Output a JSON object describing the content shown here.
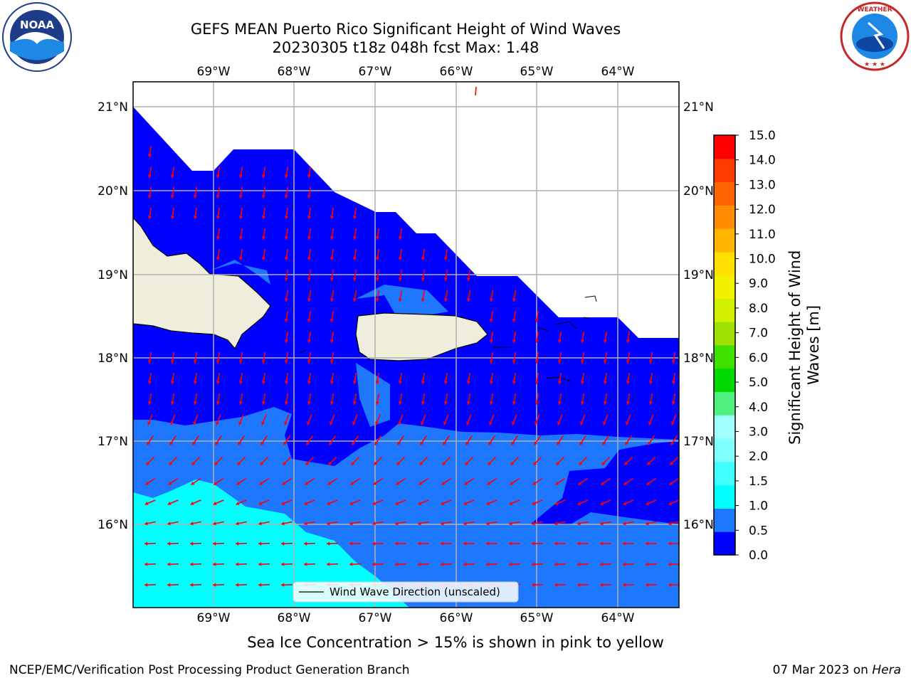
{
  "title_line1": "GEFS MEAN Puerto Rico Significant Height of Wind Waves",
  "title_line2": "20230305 t18z 048h fcst   Max: 1.48",
  "logos": {
    "noaa_text": "NOAA",
    "noaa_ring": "NATIONAL OCEANIC AND ATMOSPHERIC ADMINISTRATION · U.S. DEPARTMENT OF COMMERCE",
    "nws_ring": "NATIONAL WEATHER SERVICE"
  },
  "map": {
    "lon_labels": [
      "69°W",
      "68°W",
      "67°W",
      "66°W",
      "65°W",
      "64°W"
    ],
    "lat_labels": [
      "21°N",
      "20°N",
      "19°N",
      "18°N",
      "17°N",
      "16°N"
    ],
    "legend_label": "Wind Wave Direction (unscaled)"
  },
  "colorbar": {
    "label_line1": "Significant Height of Wind",
    "label_line2": "Waves [m]",
    "ticks": [
      "0.0",
      "0.5",
      "1.0",
      "1.5",
      "2.0",
      "3.0",
      "4.0",
      "5.0",
      "6.0",
      "7.0",
      "8.0",
      "9.0",
      "10.0",
      "11.0",
      "12.0",
      "13.0",
      "14.0",
      "15.0"
    ],
    "colors": [
      "#0000ff",
      "#1e78ff",
      "#00ffff",
      "#40ffff",
      "#80ffff",
      "#a0ffff",
      "#50f080",
      "#00d800",
      "#40e000",
      "#a0e000",
      "#d0f000",
      "#f0f000",
      "#ffe000",
      "#ffb400",
      "#ff8c00",
      "#ff6400",
      "#ff3c00",
      "#ff0000"
    ]
  },
  "note": "Sea Ice Concentration > 15% is shown in pink to yellow",
  "footer_left": "NCEP/EMC/Verification Post Processing Product Generation Branch",
  "footer_right_prefix": "07 Mar 2023 on ",
  "footer_right_host": "Hera"
}
